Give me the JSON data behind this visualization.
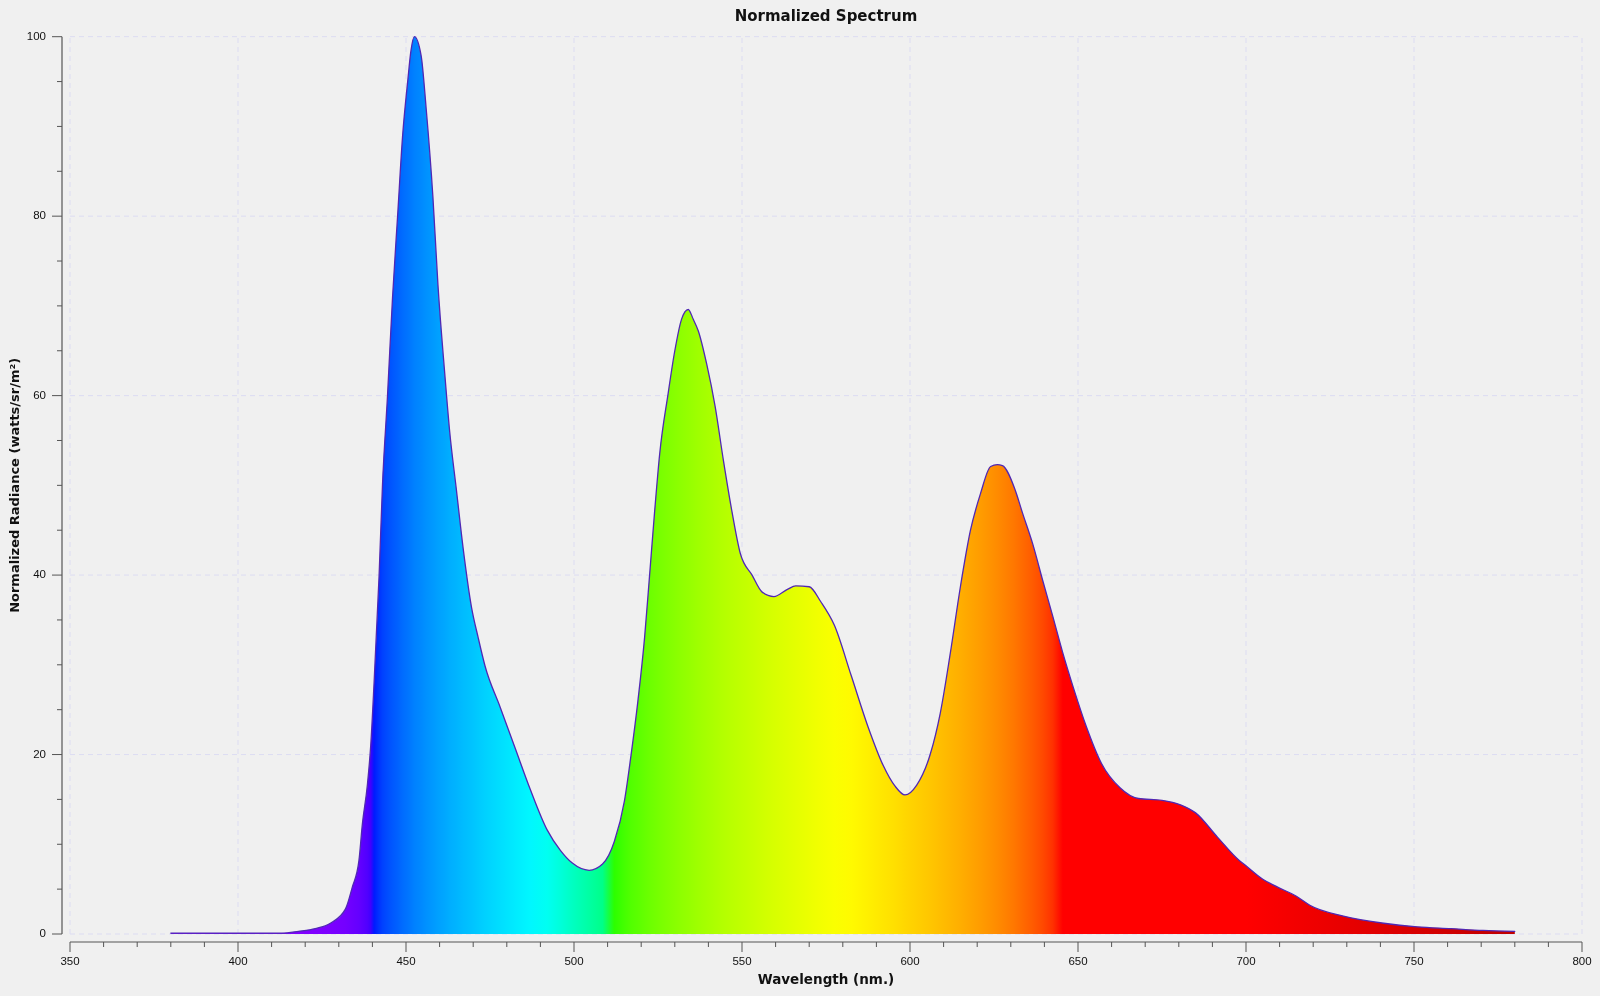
{
  "chart_data": {
    "type": "area",
    "title": "Normalized Spectrum",
    "xlabel": "Wavelength (nm.)",
    "ylabel": "Normalized Radiance (watts/sr/m²)",
    "x": [
      380,
      390,
      400,
      410,
      413,
      418,
      423,
      427.5,
      432,
      434,
      436,
      437,
      438.5,
      439.5,
      440.5,
      442,
      443,
      444.5,
      446,
      447.5,
      449,
      450.5,
      451.5,
      452.5,
      454.5,
      456,
      458,
      459.5,
      461.5,
      463,
      465,
      467,
      469.5,
      471.5,
      473.5,
      478,
      482.5,
      487,
      492,
      496,
      499.5,
      504.5,
      508.5,
      512,
      515,
      517,
      519,
      521,
      522.5,
      524,
      525.5,
      528,
      530,
      532,
      534,
      535.5,
      537,
      539.5,
      542,
      544.5,
      547,
      549.5,
      553,
      556,
      559.5,
      563.5,
      566,
      570,
      573.5,
      577.5,
      582.5,
      587.5,
      592,
      595.5,
      598.5,
      602,
      606,
      609,
      612,
      615,
      618,
      621,
      624,
      626,
      627.5,
      631,
      633.5,
      636.5,
      639.5,
      642.5,
      645.5,
      648.5,
      652.5,
      657,
      662.5,
      668,
      675,
      680.5,
      685,
      691.5,
      698,
      700,
      705,
      709,
      715,
      719,
      729,
      741,
      751,
      761,
      770.5,
      780
    ],
    "series": [
      {
        "color": "#5028b4",
        "colors": [
          "#8000ff",
          "#8000ff",
          "#8000ff",
          "#8000ff",
          "#8000ff",
          "#8000ff",
          "#8000ff",
          "#7c00ff",
          "#7400ff",
          "#6c00ff",
          "#6400ff",
          "#5c00ff",
          "#5000ff",
          "#4000ff",
          "#001aff",
          "#0033ff",
          "#0041ff",
          "#004dff",
          "#0058ff",
          "#0061ff",
          "#006cff",
          "#0074ff",
          "#007aff",
          "#0081ff",
          "#0089ff",
          "#0091ff",
          "#0099ff",
          "#00a0ff",
          "#00a7ff",
          "#00aeff",
          "#00b4ff",
          "#00bcff",
          "#00c3ff",
          "#00caff",
          "#00d1ff",
          "#00deff",
          "#00ebff",
          "#00f7ff",
          "#00fff2",
          "#00ffda",
          "#00ffc2",
          "#00ffa3",
          "#00ff89",
          "#2cff00",
          "#44ff00",
          "#52ff00",
          "#5bff00",
          "#65ff00",
          "#6cff00",
          "#72ff00",
          "#78ff00",
          "#81ff00",
          "#88ff00",
          "#8fff00",
          "#95ff00",
          "#9aff00",
          "#9fff00",
          "#a6ff00",
          "#adff00",
          "#b4ff00",
          "#baff00",
          "#c0ff00",
          "#c8ff00",
          "#cfff00",
          "#d7ff00",
          "#dfff00",
          "#e4ff00",
          "#ecff00",
          "#f3ff00",
          "#faff00",
          "#fffa00",
          "#fff000",
          "#ffe600",
          "#ffdf00",
          "#ffd700",
          "#ffcf00",
          "#ffc600",
          "#ffbe00",
          "#ffb600",
          "#ffae00",
          "#ffa500",
          "#ff9c00",
          "#ff9200",
          "#ff8b00",
          "#ff8500",
          "#ff7700",
          "#ff6a00",
          "#ff5b00",
          "#ff4900",
          "#ff3100",
          "#ff0000",
          "#ff0000",
          "#ff0000",
          "#ff0000",
          "#ff0000",
          "#ff0000",
          "#ff0000",
          "#ff0000",
          "#ff0000",
          "#ff0000",
          "#ff0000",
          "#ff0000",
          "#fb0000",
          "#f80000",
          "#f30000",
          "#f00000",
          "#e80000",
          "#df0000",
          "#d70000",
          "#cf0000",
          "#c70000",
          "#c00000"
        ],
        "values": [
          0.1,
          0.1,
          0.1,
          0.1,
          0.1,
          0.3,
          0.6,
          1.2,
          2.8,
          5.2,
          8.2,
          12.2,
          16.6,
          21,
          28,
          40,
          50,
          60,
          71,
          80,
          89,
          95,
          98.5,
          100,
          97.9,
          92,
          82.2,
          72.4,
          62.6,
          56,
          49.5,
          43,
          36.4,
          33,
          29.9,
          25.3,
          20.7,
          16.1,
          11.6,
          9.3,
          7.9,
          7.1,
          7.8,
          10.3,
          14.8,
          20,
          25.9,
          33,
          40,
          47.1,
          53.5,
          60.2,
          65,
          68.5,
          69.6,
          68.5,
          67.2,
          63.5,
          58.8,
          52.7,
          47.1,
          42.4,
          40,
          38.1,
          37.6,
          38.4,
          38.8,
          38.7,
          37,
          34.4,
          28.8,
          23.1,
          18.8,
          16.5,
          15.5,
          16.6,
          20,
          24.6,
          31.3,
          38.7,
          45,
          49.1,
          52.1,
          52.3,
          52.2,
          49.8,
          46.9,
          43.5,
          39.4,
          35.4,
          31.3,
          27.6,
          23.1,
          19,
          16.3,
          15.1,
          14.9,
          14.4,
          13.5,
          10.8,
          8.2,
          7.6,
          6.1,
          5.3,
          4.2,
          3.2,
          2,
          1.2,
          0.8,
          0.6,
          0.4,
          0.3
        ]
      }
    ],
    "xlim": [
      350,
      800
    ],
    "ylim": [
      0,
      100
    ],
    "xticks": [
      350,
      {
        "value": 360,
        "label": null
      },
      {
        "value": 370,
        "label": null
      },
      {
        "value": 380,
        "label": null
      },
      {
        "value": 390,
        "label": null
      },
      400,
      {
        "value": 410,
        "label": null
      },
      {
        "value": 420,
        "label": null
      },
      {
        "value": 430,
        "label": null
      },
      {
        "value": 440,
        "label": null
      },
      450,
      {
        "value": 460,
        "label": null
      },
      {
        "value": 470,
        "label": null
      },
      {
        "value": 480,
        "label": null
      },
      {
        "value": 490,
        "label": null
      },
      500,
      {
        "value": 510,
        "label": null
      },
      {
        "value": 520,
        "label": null
      },
      {
        "value": 530,
        "label": null
      },
      {
        "value": 540,
        "label": null
      },
      550,
      {
        "value": 560,
        "label": null
      },
      {
        "value": 570,
        "label": null
      },
      {
        "value": 580,
        "label": null
      },
      {
        "value": 590,
        "label": null
      },
      600,
      {
        "value": 610,
        "label": null
      },
      {
        "value": 620,
        "label": null
      },
      {
        "value": 630,
        "label": null
      },
      {
        "value": 640,
        "label": null
      },
      650,
      {
        "value": 660,
        "label": null
      },
      {
        "value": 670,
        "label": null
      },
      {
        "value": 680,
        "label": null
      },
      {
        "value": 690,
        "label": null
      },
      700,
      {
        "value": 710,
        "label": null
      },
      {
        "value": 720,
        "label": null
      },
      {
        "value": 730,
        "label": null
      },
      {
        "value": 740,
        "label": null
      },
      750,
      {
        "value": 760,
        "label": null
      },
      {
        "value": 770,
        "label": null
      },
      {
        "value": 780,
        "label": null
      },
      {
        "value": 790,
        "label": null
      },
      800
    ],
    "yticks": [
      0,
      {
        "value": 5,
        "label": null
      },
      {
        "value": 10,
        "label": null
      },
      {
        "value": 15,
        "label": null
      },
      20,
      {
        "value": 25,
        "label": null
      },
      {
        "value": 30,
        "label": null
      },
      {
        "value": 35,
        "label": null
      },
      40,
      {
        "value": 45,
        "label": null
      },
      {
        "value": 50,
        "label": null
      },
      {
        "value": 55,
        "label": null
      },
      60,
      {
        "value": 65,
        "label": null
      },
      {
        "value": 70,
        "label": null
      },
      {
        "value": 75,
        "label": null
      },
      80,
      {
        "value": 85,
        "label": null
      },
      {
        "value": 90,
        "label": null
      },
      {
        "value": 95,
        "label": null
      },
      100
    ],
    "grid": true
  }
}
